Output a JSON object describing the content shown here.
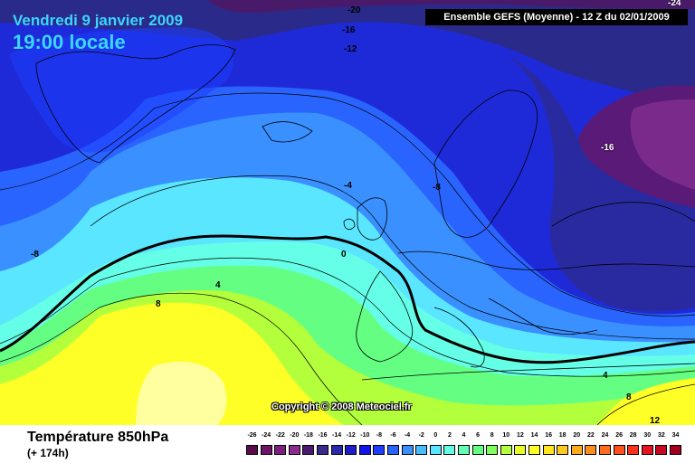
{
  "header": {
    "date": "Vendredi 9 janvier 2009",
    "time": "19:00 locale",
    "run": "Ensemble GEFS (Moyenne)  - 12 Z du 02/01/2009"
  },
  "copyright": "Copyright © 2008 Meteociel.fr",
  "footer": {
    "title": "Température 850hPa",
    "lead": "(+ 174h)"
  },
  "contour_labels": [
    "-20",
    "-16",
    "-12",
    "-4",
    "-8",
    "-8",
    "0",
    "4",
    "8",
    "-16",
    "-24",
    "4",
    "8",
    "12"
  ],
  "legend": {
    "values": [
      "-26",
      "-24",
      "-22",
      "-20",
      "-18",
      "-16",
      "-14",
      "-12",
      "-10",
      "-8",
      "-6",
      "-4",
      "-2",
      "0",
      "2",
      "4",
      "6",
      "8",
      "10",
      "12",
      "14",
      "16",
      "18",
      "20",
      "22",
      "24",
      "26",
      "28",
      "30",
      "32",
      "34"
    ],
    "colors": [
      "#5a0a4a",
      "#6e1468",
      "#7e1e7e",
      "#8a2c8a",
      "#4b1a6e",
      "#3a2a8a",
      "#2a2aa8",
      "#1e1ec8",
      "#1414e6",
      "#1e3cff",
      "#2a64ff",
      "#3a90ff",
      "#48bcff",
      "#5ae6ff",
      "#64ffe6",
      "#64ffb4",
      "#64ff82",
      "#82ff5a",
      "#b4ff3c",
      "#e6ff28",
      "#ffff28",
      "#ffe61e",
      "#ffc81e",
      "#ffaa1e",
      "#ff8c1e",
      "#ff6e1e",
      "#ff501e",
      "#ff321e",
      "#e6141e",
      "#c80a1e",
      "#a0001e"
    ]
  }
}
